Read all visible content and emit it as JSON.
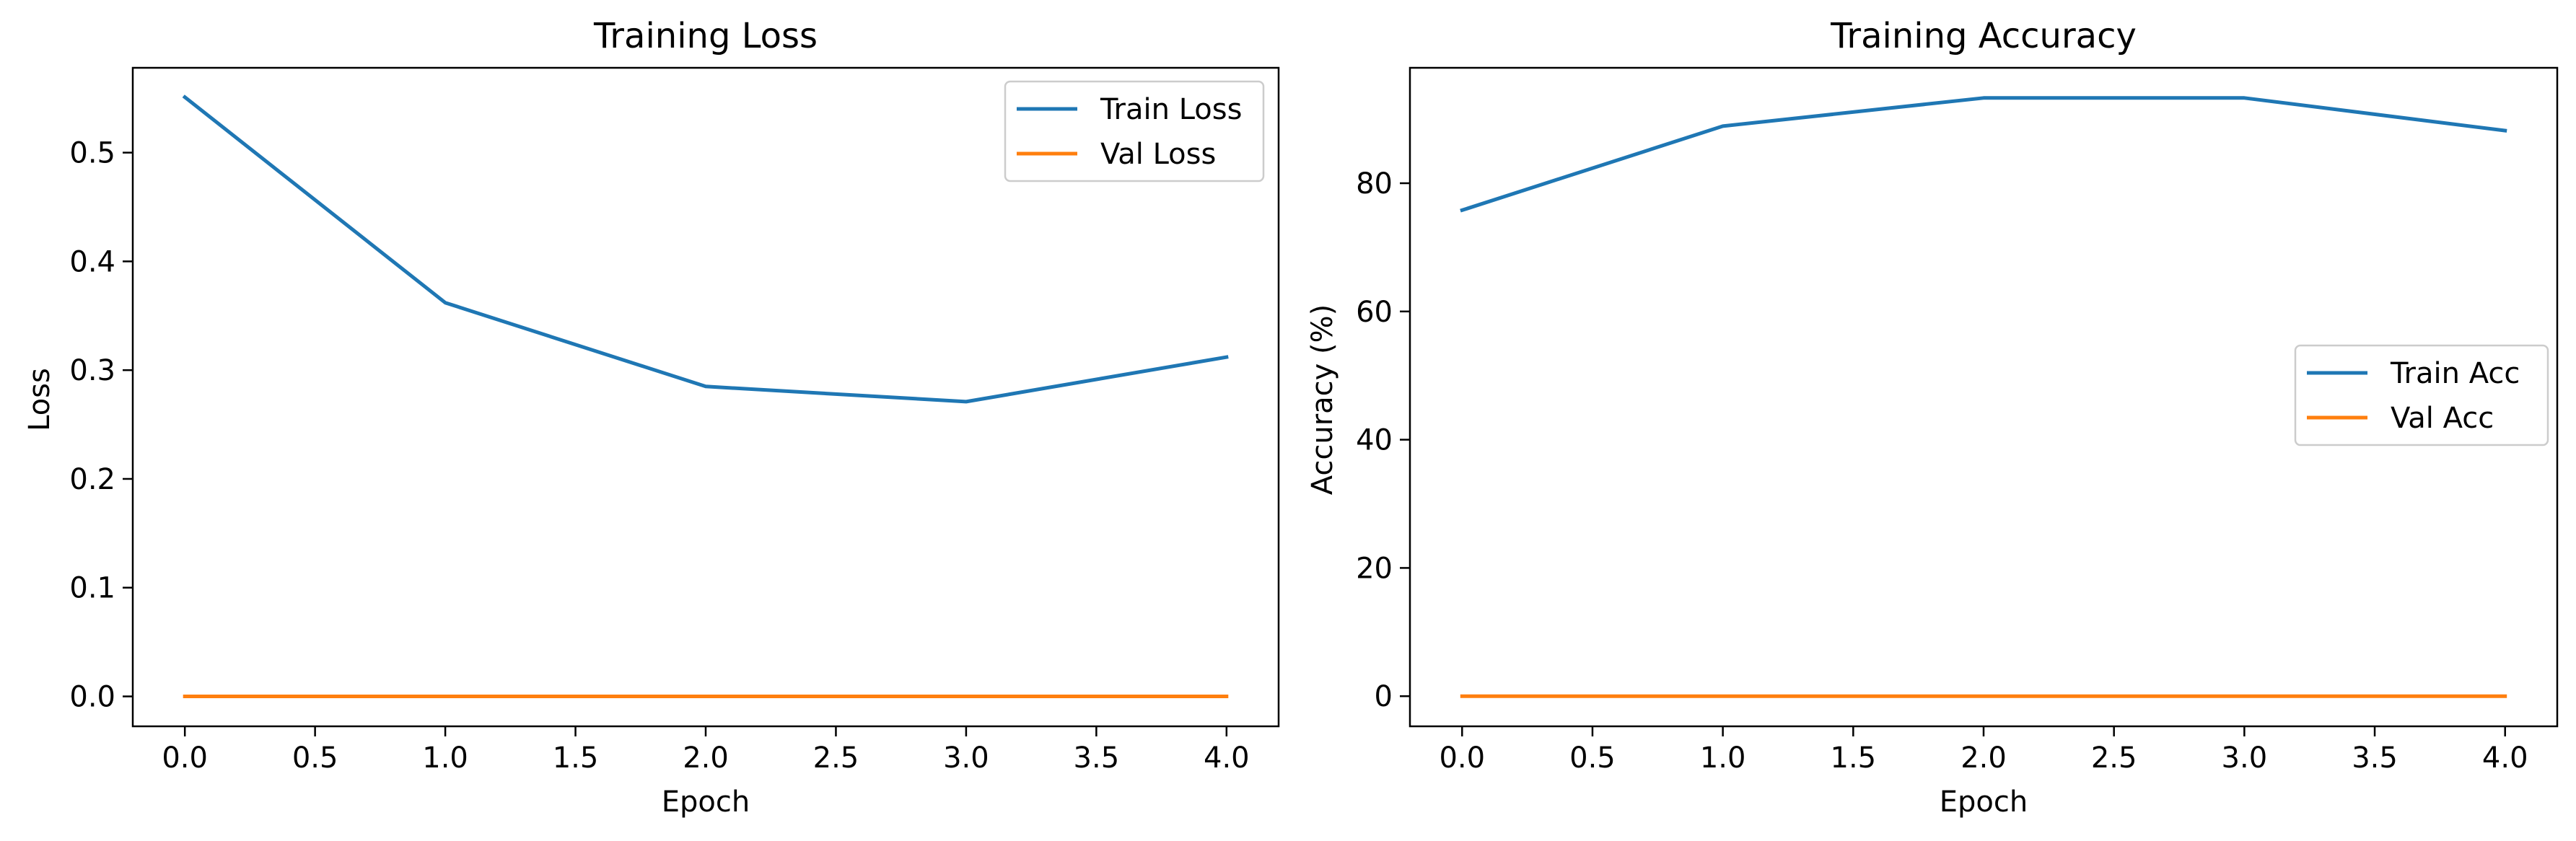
{
  "chart_data": [
    {
      "type": "line",
      "title": "Training Loss",
      "xlabel": "Epoch",
      "ylabel": "Loss",
      "x": [
        0,
        1,
        2,
        3,
        4
      ],
      "xlim": [
        -0.2,
        4.2
      ],
      "ylim": [
        -0.0275,
        0.578
      ],
      "xticks": [
        0.0,
        0.5,
        1.0,
        1.5,
        2.0,
        2.5,
        3.0,
        3.5,
        4.0
      ],
      "xtick_labels": [
        "0.0",
        "0.5",
        "1.0",
        "1.5",
        "2.0",
        "2.5",
        "3.0",
        "3.5",
        "4.0"
      ],
      "yticks": [
        0.0,
        0.1,
        0.2,
        0.3,
        0.4,
        0.5
      ],
      "ytick_labels": [
        "0.0",
        "0.1",
        "0.2",
        "0.3",
        "0.4",
        "0.5"
      ],
      "grid": false,
      "legend_position": "upper right",
      "series": [
        {
          "name": "Train Loss",
          "color": "#1f77b4",
          "values": [
            0.551,
            0.362,
            0.285,
            0.271,
            0.312
          ]
        },
        {
          "name": "Val Loss",
          "color": "#ff7f0e",
          "values": [
            0.0,
            0.0,
            0.0,
            0.0,
            0.0
          ]
        }
      ]
    },
    {
      "type": "line",
      "title": "Training Accuracy",
      "xlabel": "Epoch",
      "ylabel": "Accuracy (%)",
      "x": [
        0,
        1,
        2,
        3,
        4
      ],
      "xlim": [
        -0.2,
        4.2
      ],
      "ylim": [
        -4.7,
        98.0
      ],
      "xticks": [
        0.0,
        0.5,
        1.0,
        1.5,
        2.0,
        2.5,
        3.0,
        3.5,
        4.0
      ],
      "xtick_labels": [
        "0.0",
        "0.5",
        "1.0",
        "1.5",
        "2.0",
        "2.5",
        "3.0",
        "3.5",
        "4.0"
      ],
      "yticks": [
        0,
        20,
        40,
        60,
        80
      ],
      "ytick_labels": [
        "0",
        "20",
        "40",
        "60",
        "80"
      ],
      "grid": false,
      "legend_position": "center right",
      "series": [
        {
          "name": "Train Acc",
          "color": "#1f77b4",
          "values": [
            75.8,
            88.9,
            93.3,
            93.3,
            88.2
          ]
        },
        {
          "name": "Val Acc",
          "color": "#ff7f0e",
          "values": [
            0.0,
            0.0,
            0.0,
            0.0,
            0.0
          ]
        }
      ]
    }
  ]
}
